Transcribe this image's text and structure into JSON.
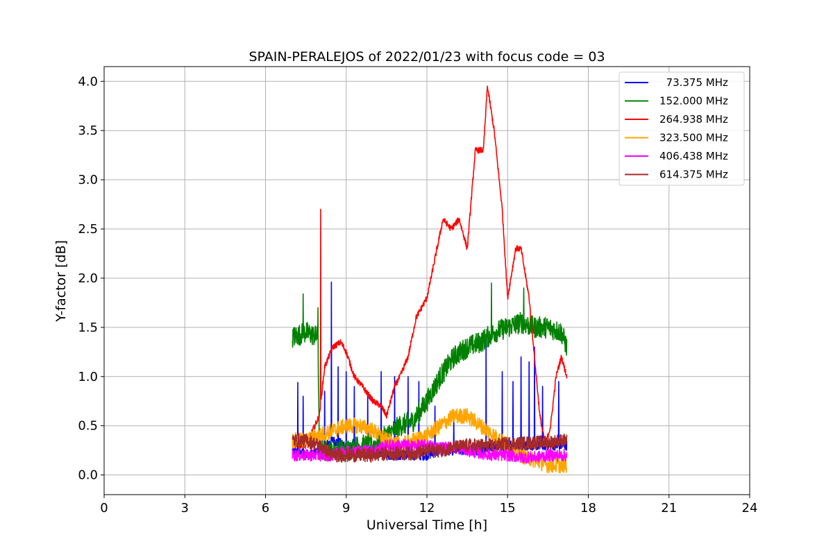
{
  "chart_data": {
    "type": "line",
    "title": "SPAIN-PERALEJOS of 2022/01/23 with focus code = 03",
    "xlabel": "Universal Time [h]",
    "ylabel": "Y-factor [dB]",
    "xlim": [
      0,
      24
    ],
    "ylim": [
      -0.2,
      4.15
    ],
    "xticks": [
      0,
      3,
      6,
      9,
      12,
      15,
      18,
      21,
      24
    ],
    "yticks": [
      0.0,
      0.5,
      1.0,
      1.5,
      2.0,
      2.5,
      3.0,
      3.5,
      4.0
    ],
    "xtick_labels": [
      "0",
      "3",
      "6",
      "9",
      "12",
      "15",
      "18",
      "21",
      "24"
    ],
    "ytick_labels": [
      "0.0",
      "0.5",
      "1.0",
      "1.5",
      "2.0",
      "2.5",
      "3.0",
      "3.5",
      "4.0"
    ],
    "grid": true,
    "legend_position": "top-right",
    "series": [
      {
        "name": "  73.375 MHz",
        "color": "#0000ff",
        "noise": 0.05,
        "points": [
          [
            7.0,
            0.25
          ],
          [
            7.5,
            0.2
          ],
          [
            8.0,
            0.25
          ],
          [
            8.5,
            0.35
          ],
          [
            9.0,
            0.3
          ],
          [
            9.5,
            0.25
          ],
          [
            10.0,
            0.25
          ],
          [
            10.5,
            0.2
          ],
          [
            11.0,
            0.2
          ],
          [
            11.5,
            0.2
          ],
          [
            12.0,
            0.2
          ],
          [
            12.5,
            0.25
          ],
          [
            13.0,
            0.25
          ],
          [
            13.5,
            0.25
          ],
          [
            14.0,
            0.25
          ],
          [
            14.5,
            0.3
          ],
          [
            15.0,
            0.3
          ],
          [
            15.5,
            0.3
          ],
          [
            16.0,
            0.3
          ],
          [
            16.5,
            0.3
          ],
          [
            17.0,
            0.3
          ],
          [
            17.2,
            0.3
          ]
        ],
        "spikes": [
          [
            7.2,
            0.94
          ],
          [
            7.4,
            0.8
          ],
          [
            8.2,
            0.85
          ],
          [
            8.45,
            1.96
          ],
          [
            8.7,
            1.1
          ],
          [
            9.0,
            1.05
          ],
          [
            9.3,
            0.9
          ],
          [
            9.8,
            0.85
          ],
          [
            10.3,
            1.05
          ],
          [
            10.8,
            1.0
          ],
          [
            11.3,
            1.0
          ],
          [
            11.7,
            0.95
          ],
          [
            12.3,
            0.7
          ],
          [
            13.0,
            0.6
          ],
          [
            14.2,
            1.4
          ],
          [
            14.8,
            1.05
          ],
          [
            15.2,
            0.95
          ],
          [
            15.5,
            1.2
          ],
          [
            15.8,
            1.15
          ],
          [
            16.0,
            1.3
          ],
          [
            16.3,
            0.9
          ],
          [
            16.9,
            0.95
          ]
        ]
      },
      {
        "name": "152.000 MHz",
        "color": "#008000",
        "noise": 0.11,
        "points": [
          [
            7.0,
            1.4
          ],
          [
            7.5,
            1.45
          ],
          [
            7.95,
            1.4
          ],
          [
            8.0,
            0.25
          ],
          [
            8.5,
            0.25
          ],
          [
            9.0,
            0.25
          ],
          [
            9.5,
            0.3
          ],
          [
            10.0,
            0.3
          ],
          [
            10.5,
            0.4
          ],
          [
            11.0,
            0.5
          ],
          [
            11.5,
            0.55
          ],
          [
            12.0,
            0.75
          ],
          [
            12.5,
            1.0
          ],
          [
            13.0,
            1.2
          ],
          [
            13.5,
            1.3
          ],
          [
            14.0,
            1.35
          ],
          [
            14.5,
            1.45
          ],
          [
            15.0,
            1.5
          ],
          [
            15.5,
            1.55
          ],
          [
            16.0,
            1.5
          ],
          [
            16.5,
            1.5
          ],
          [
            17.0,
            1.45
          ],
          [
            17.2,
            1.3
          ]
        ],
        "spikes": [
          [
            7.4,
            1.84
          ],
          [
            7.95,
            1.7
          ],
          [
            14.4,
            1.95
          ],
          [
            15.6,
            1.9
          ]
        ]
      },
      {
        "name": "264.938 MHz",
        "color": "#ff0000",
        "noise": 0.03,
        "points": [
          [
            7.0,
            0.3
          ],
          [
            7.5,
            0.3
          ],
          [
            8.0,
            0.6
          ],
          [
            8.2,
            1.1
          ],
          [
            8.5,
            1.3
          ],
          [
            8.8,
            1.35
          ],
          [
            9.0,
            1.25
          ],
          [
            9.3,
            1.0
          ],
          [
            9.6,
            0.9
          ],
          [
            10.0,
            0.75
          ],
          [
            10.3,
            0.7
          ],
          [
            10.5,
            0.6
          ],
          [
            10.8,
            0.9
          ],
          [
            11.0,
            1.0
          ],
          [
            11.3,
            1.2
          ],
          [
            11.6,
            1.6
          ],
          [
            12.0,
            1.8
          ],
          [
            12.3,
            2.2
          ],
          [
            12.6,
            2.6
          ],
          [
            12.9,
            2.5
          ],
          [
            13.2,
            2.6
          ],
          [
            13.5,
            2.3
          ],
          [
            13.8,
            3.3
          ],
          [
            14.1,
            3.3
          ],
          [
            14.25,
            3.95
          ],
          [
            14.5,
            3.5
          ],
          [
            14.8,
            2.7
          ],
          [
            15.0,
            1.8
          ],
          [
            15.3,
            2.3
          ],
          [
            15.5,
            2.3
          ],
          [
            15.8,
            1.8
          ],
          [
            16.0,
            1.2
          ],
          [
            16.2,
            0.6
          ],
          [
            16.4,
            0.3
          ],
          [
            16.6,
            0.5
          ],
          [
            16.8,
            1.0
          ],
          [
            17.0,
            1.2
          ],
          [
            17.2,
            1.0
          ]
        ],
        "spikes": [
          [
            8.05,
            2.7
          ]
        ]
      },
      {
        "name": "323.500 MHz",
        "color": "#ffa500",
        "noise": 0.08,
        "points": [
          [
            7.0,
            0.35
          ],
          [
            7.5,
            0.35
          ],
          [
            8.0,
            0.4
          ],
          [
            8.5,
            0.45
          ],
          [
            9.0,
            0.5
          ],
          [
            9.5,
            0.5
          ],
          [
            10.0,
            0.45
          ],
          [
            10.5,
            0.35
          ],
          [
            11.0,
            0.3
          ],
          [
            11.5,
            0.35
          ],
          [
            12.0,
            0.4
          ],
          [
            12.5,
            0.5
          ],
          [
            13.0,
            0.6
          ],
          [
            13.5,
            0.6
          ],
          [
            14.0,
            0.5
          ],
          [
            14.5,
            0.4
          ],
          [
            15.0,
            0.3
          ],
          [
            15.5,
            0.2
          ],
          [
            16.0,
            0.15
          ],
          [
            16.5,
            0.1
          ],
          [
            17.0,
            0.1
          ],
          [
            17.2,
            0.1
          ]
        ],
        "spikes": []
      },
      {
        "name": "406.438 MHz",
        "color": "#ff00ff",
        "noise": 0.06,
        "points": [
          [
            7.0,
            0.2
          ],
          [
            7.5,
            0.2
          ],
          [
            8.0,
            0.2
          ],
          [
            8.5,
            0.2
          ],
          [
            9.0,
            0.25
          ],
          [
            9.5,
            0.25
          ],
          [
            10.0,
            0.25
          ],
          [
            10.5,
            0.3
          ],
          [
            11.0,
            0.3
          ],
          [
            11.5,
            0.3
          ],
          [
            12.0,
            0.3
          ],
          [
            12.5,
            0.28
          ],
          [
            13.0,
            0.28
          ],
          [
            13.5,
            0.25
          ],
          [
            14.0,
            0.22
          ],
          [
            14.5,
            0.2
          ],
          [
            15.0,
            0.2
          ],
          [
            15.5,
            0.18
          ],
          [
            16.0,
            0.18
          ],
          [
            16.5,
            0.2
          ],
          [
            17.0,
            0.2
          ],
          [
            17.2,
            0.2
          ]
        ],
        "spikes": []
      },
      {
        "name": "614.375 MHz",
        "color": "#a52a2a",
        "noise": 0.07,
        "points": [
          [
            7.0,
            0.35
          ],
          [
            7.5,
            0.35
          ],
          [
            8.0,
            0.3
          ],
          [
            8.5,
            0.2
          ],
          [
            9.0,
            0.2
          ],
          [
            9.5,
            0.2
          ],
          [
            10.0,
            0.2
          ],
          [
            10.5,
            0.22
          ],
          [
            11.0,
            0.22
          ],
          [
            11.5,
            0.22
          ],
          [
            12.0,
            0.25
          ],
          [
            12.5,
            0.25
          ],
          [
            13.0,
            0.28
          ],
          [
            13.5,
            0.3
          ],
          [
            14.0,
            0.3
          ],
          [
            14.5,
            0.3
          ],
          [
            15.0,
            0.32
          ],
          [
            15.5,
            0.32
          ],
          [
            16.0,
            0.33
          ],
          [
            16.5,
            0.33
          ],
          [
            17.0,
            0.35
          ],
          [
            17.2,
            0.35
          ]
        ],
        "spikes": []
      }
    ]
  }
}
